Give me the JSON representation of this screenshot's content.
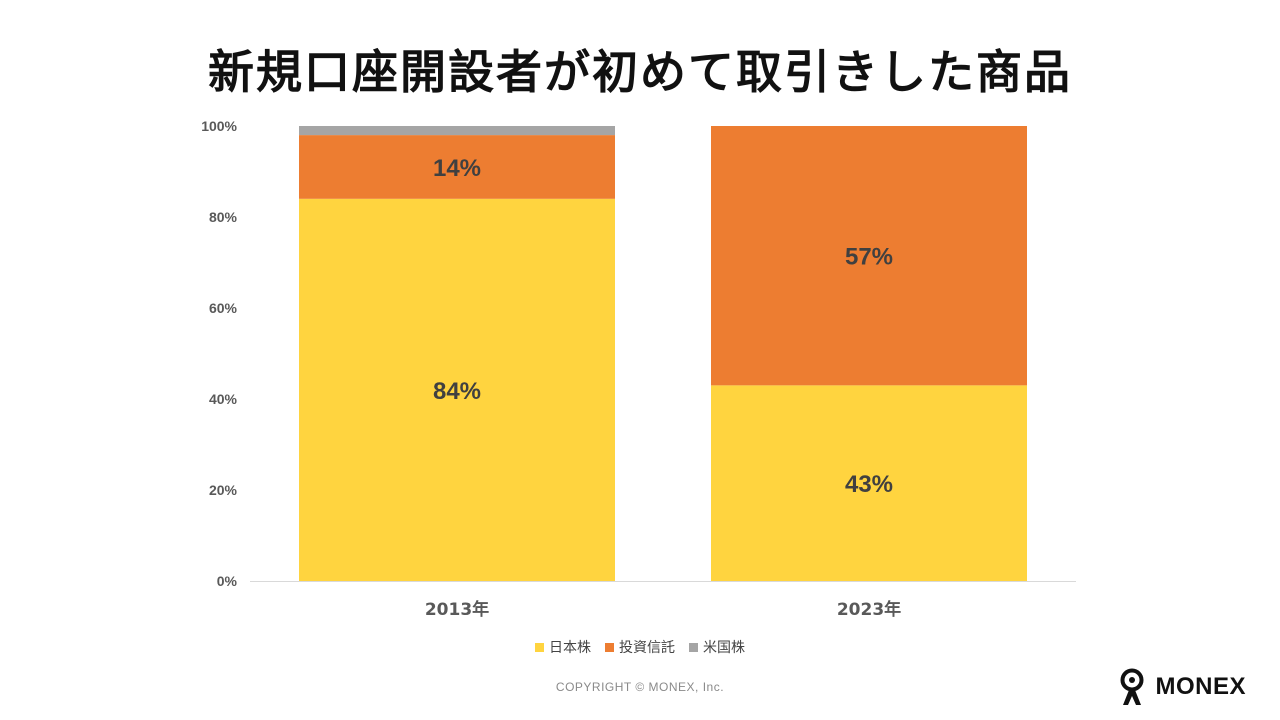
{
  "title": "新規口座開設者が初めて取引きした商品",
  "chart_data": {
    "type": "bar",
    "stacked": true,
    "title": "新規口座開設者が初めて取引きした商品",
    "categories": [
      "2013年",
      "2023年"
    ],
    "series": [
      {
        "name": "日本株",
        "values": [
          84,
          43
        ],
        "labels": [
          "84%",
          "43%"
        ],
        "color": "#FFD43F"
      },
      {
        "name": "投資信託",
        "values": [
          14,
          57
        ],
        "labels": [
          "14%",
          "57%"
        ],
        "color": "#ED7D31"
      },
      {
        "name": "米国株",
        "values": [
          2,
          0
        ],
        "labels": [
          "",
          ""
        ],
        "color": "#A5A5A5"
      }
    ],
    "yticks": [
      "0%",
      "20%",
      "40%",
      "60%",
      "80%",
      "100%"
    ],
    "ylim": [
      0,
      100
    ],
    "xlabel": "",
    "ylabel": "",
    "legend_position": "bottom"
  },
  "footer": {
    "copyright": "COPYRIGHT © MONEX, Inc.",
    "brand": "MONEX"
  }
}
